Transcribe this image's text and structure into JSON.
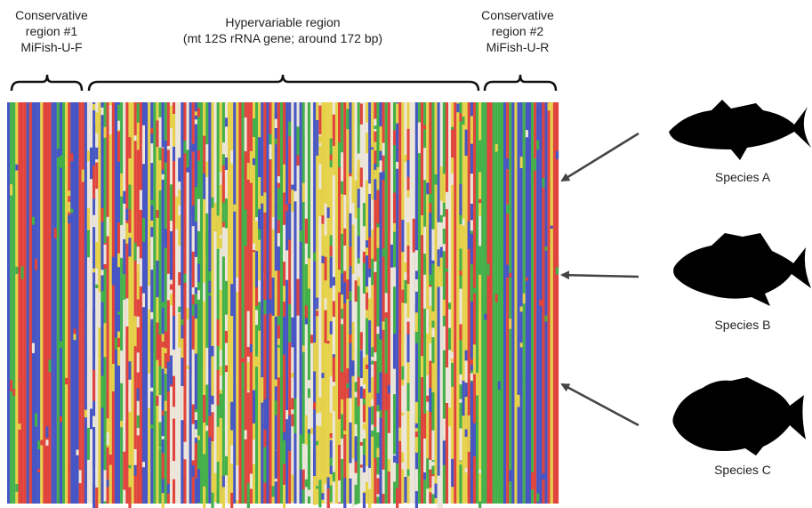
{
  "regions": [
    {
      "lines": [
        "Conservative",
        "region #1",
        "MiFish-U-F"
      ]
    },
    {
      "lines": [
        "Hypervariable region",
        "(mt 12S rRNA gene; around 172 bp)"
      ]
    },
    {
      "lines": [
        "Conservative",
        "region #2",
        "MiFish-U-R"
      ]
    }
  ],
  "species": [
    {
      "label": "Species A"
    },
    {
      "label": "Species B"
    },
    {
      "label": "Species C"
    }
  ]
}
